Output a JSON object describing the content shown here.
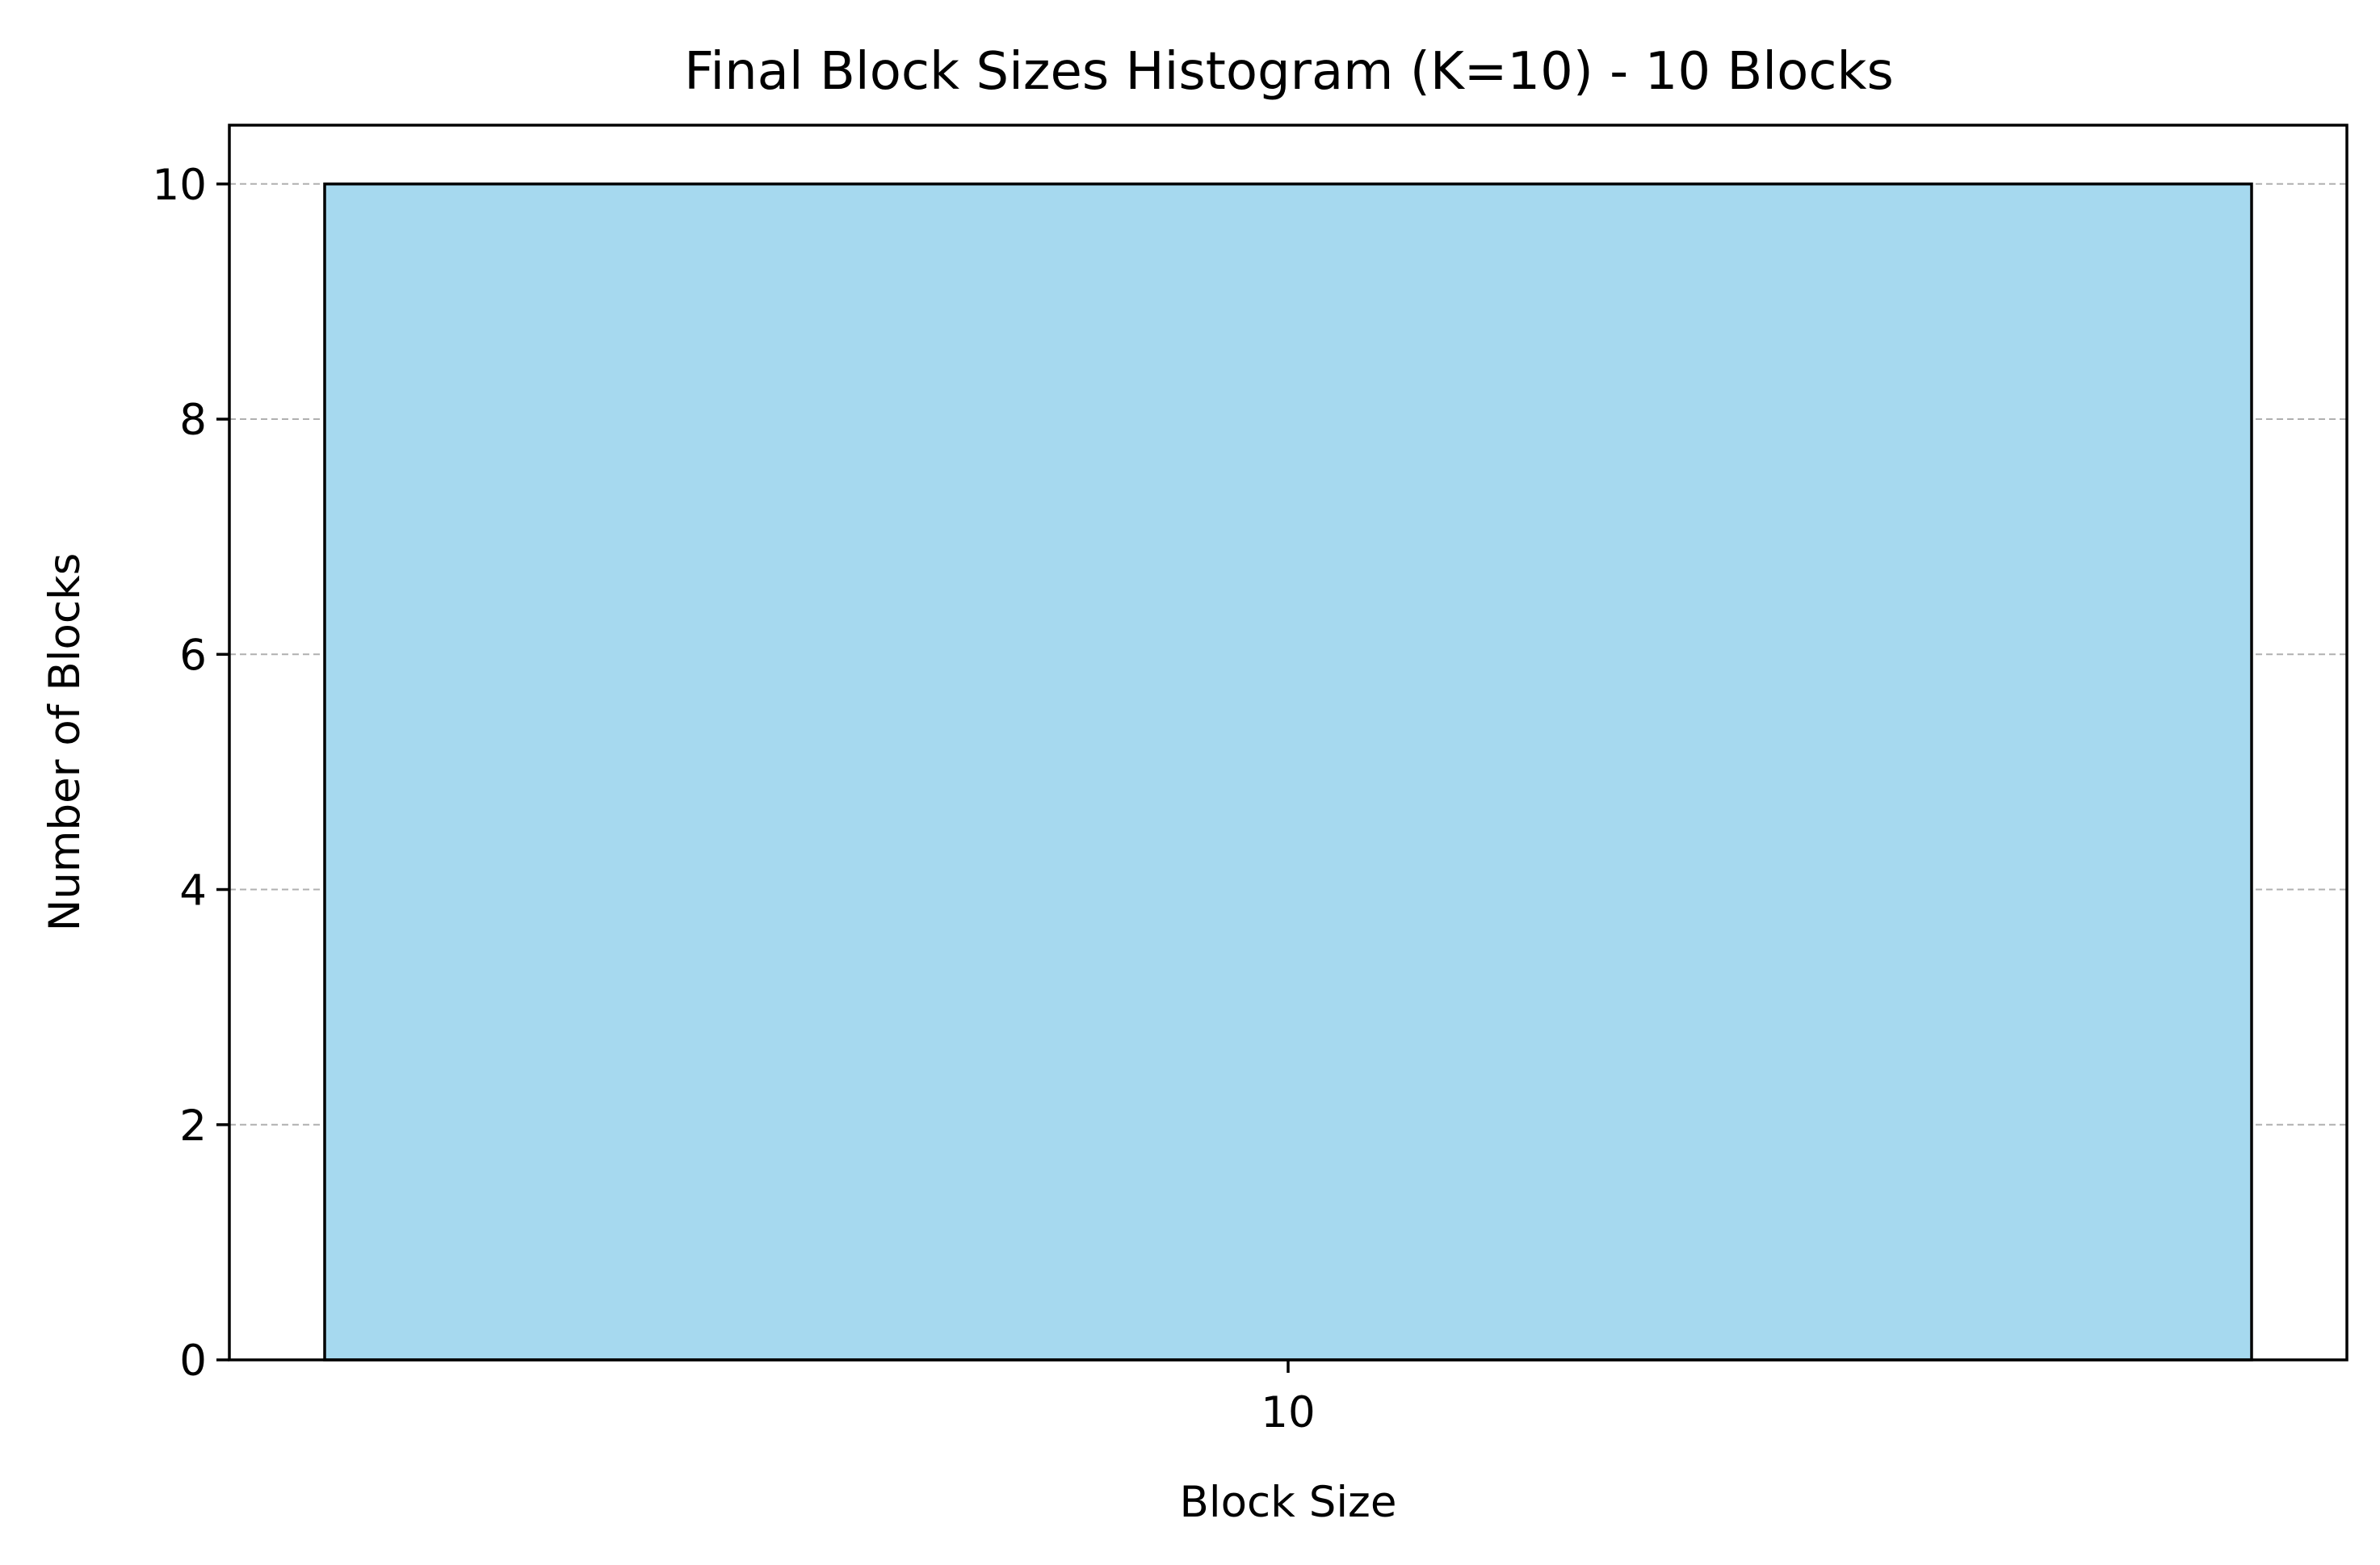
{
  "chart_data": {
    "type": "bar",
    "title": "Final Block Sizes Histogram (K=10) - 10 Blocks",
    "xlabel": "Block Size",
    "ylabel": "Number of Blocks",
    "categories": [
      "10"
    ],
    "values": [
      10
    ],
    "ylim": [
      0,
      10.5
    ],
    "yticks": [
      0,
      2,
      4,
      6,
      8,
      10
    ],
    "grid": {
      "axis": "y",
      "style": "dashed"
    },
    "legend": null,
    "colors": {
      "bar_fill": "#a6d9ef",
      "bar_edge": "#000000",
      "grid": "#b0b0b0",
      "axes": "#000000"
    }
  }
}
